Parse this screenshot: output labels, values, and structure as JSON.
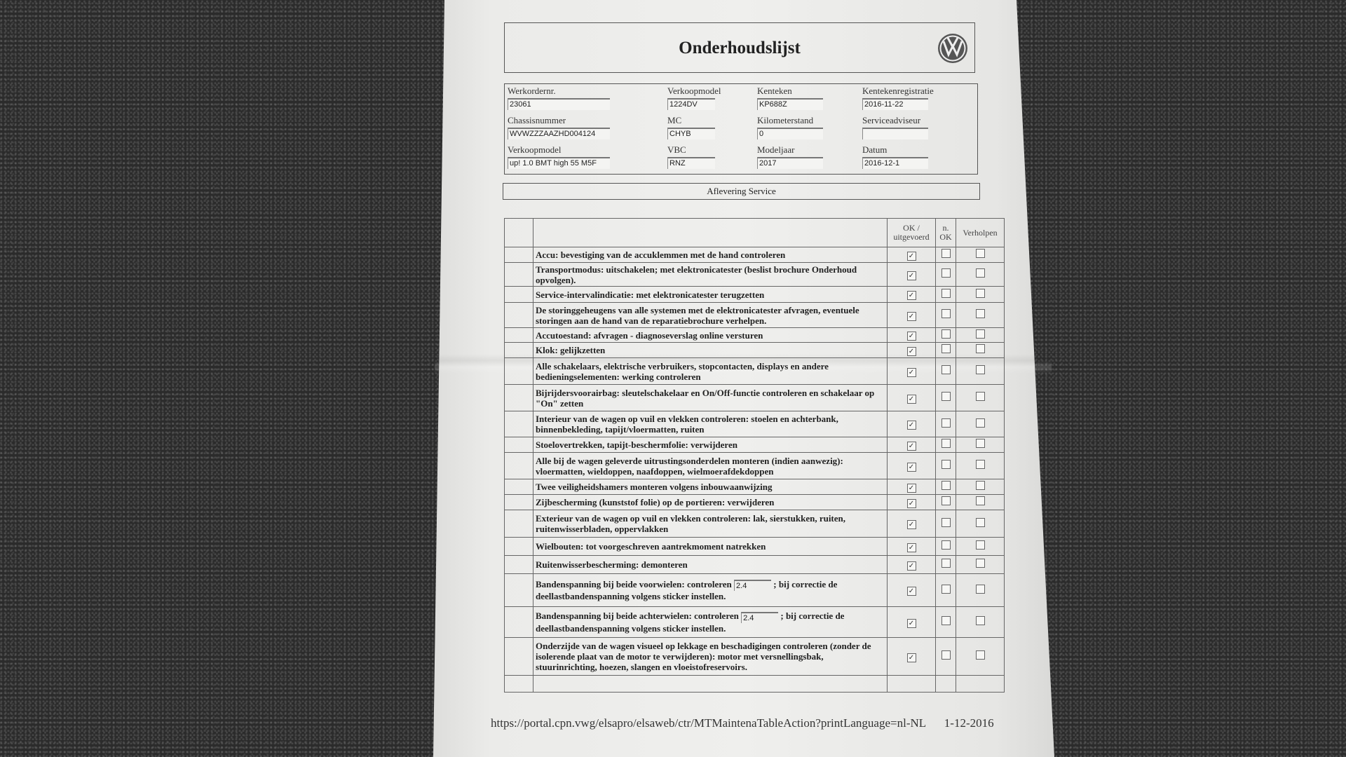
{
  "header": {
    "title": "Onderhoudslijst",
    "logo": "volkswagen-logo"
  },
  "info_fields": [
    {
      "label": "Werkordernr.",
      "value": "23061"
    },
    {
      "label": "Verkoopmodel",
      "value": "1224DV"
    },
    {
      "label": "Kenteken",
      "value": "KP688Z"
    },
    {
      "label": "Kentekenregistratie",
      "value": "2016-11-22"
    },
    {
      "label": "Chassisnummer",
      "value": "WVWZZZAAZHD004124"
    },
    {
      "label": "MC",
      "value": "CHYB"
    },
    {
      "label": "Kilometerstand",
      "value": "0"
    },
    {
      "label": "Serviceadviseur",
      "value": ""
    },
    {
      "label": "Verkoopmodel",
      "value": "up! 1.0 BMT high 55 M5F"
    },
    {
      "label": "VBC",
      "value": "RNZ"
    },
    {
      "label": "Modeljaar",
      "value": "2017"
    },
    {
      "label": "Datum",
      "value": "2016-12-1"
    }
  ],
  "section_title": "Aflevering Service",
  "table": {
    "columns": [
      "OK / uitgevoerd",
      "n. OK",
      "Verholpen"
    ],
    "rows": [
      {
        "text": "Accu: bevestiging van de accuklemmen met de hand controleren",
        "ok": true,
        "nok": false,
        "fixed": false
      },
      {
        "text": "Transportmodus: uitschakelen; met elektronicatester (beslist brochure Onderhoud opvolgen).",
        "ok": true,
        "nok": false,
        "fixed": false
      },
      {
        "text": "Service-intervalindicatie: met elektronicatester terugzetten",
        "ok": true,
        "nok": false,
        "fixed": false
      },
      {
        "text": "De storinggeheugens van alle systemen met de elektronicatester afvragen, eventuele storingen aan de hand van de reparatiebrochure verhelpen.",
        "ok": true,
        "nok": false,
        "fixed": false
      },
      {
        "text": "Accutoestand: afvragen - diagnoseverslag online versturen",
        "ok": true,
        "nok": false,
        "fixed": false
      },
      {
        "text": "Klok: gelijkzetten",
        "ok": true,
        "nok": false,
        "fixed": false
      },
      {
        "text": "Alle schakelaars, elektrische verbruikers, stopcontacten, displays en andere bedieningselementen: werking controleren",
        "ok": true,
        "nok": false,
        "fixed": false
      },
      {
        "text": "Bijrijdersvoorairbag: sleutelschakelaar en On/Off-functie controleren en schakelaar op \"On\" zetten",
        "ok": true,
        "nok": false,
        "fixed": false
      },
      {
        "text": "Interieur van de wagen op vuil en vlekken controleren: stoelen en achterbank, binnenbekleding, tapijt/vloermatten, ruiten",
        "ok": true,
        "nok": false,
        "fixed": false
      },
      {
        "text": "Stoelovertrekken, tapijt-beschermfolie: verwijderen",
        "ok": true,
        "nok": false,
        "fixed": false
      },
      {
        "text": "Alle bij de wagen geleverde uitrustingsonderdelen monteren (indien aanwezig): vloermatten, wieldoppen, naafdoppen, wielmoerafdekdoppen",
        "ok": true,
        "nok": false,
        "fixed": false
      },
      {
        "text": "Twee veiligheidshamers monteren volgens inbouwaanwijzing",
        "ok": true,
        "nok": false,
        "fixed": false
      },
      {
        "text": "Zijbescherming (kunststof folie) op de portieren: verwijderen",
        "ok": true,
        "nok": false,
        "fixed": false
      },
      {
        "text": "Exterieur van de wagen op vuil en vlekken controleren: lak, sierstukken, ruiten, ruitenwisserbladen, oppervlakken",
        "ok": true,
        "nok": false,
        "fixed": false
      },
      {
        "text": "Wielbouten: tot voorgeschreven aantrekmoment natrekken",
        "ok": true,
        "nok": false,
        "fixed": false
      },
      {
        "text": "Ruitenwisserbescherming: demonteren",
        "ok": true,
        "nok": false,
        "fixed": false
      },
      {
        "text": "Bandenspanning bij beide voorwielen: controleren",
        "input": "2.4",
        "text_after": "; bij correctie de deellastbandenspanning volgens sticker instellen.",
        "ok": true,
        "nok": false,
        "fixed": false
      },
      {
        "text": "Bandenspanning bij beide achterwielen: controleren",
        "input": "2.4",
        "text_after": "; bij correctie de deellastbandenspanning volgens sticker instellen.",
        "ok": true,
        "nok": false,
        "fixed": false
      },
      {
        "text": "Onderzijde van de wagen visueel op lekkage en beschadigingen controleren (zonder de isolerende plaat van de motor te verwijderen): motor met versnellingsbak, stuurinrichting, hoezen, slangen en vloeistofreservoirs.",
        "ok": true,
        "nok": false,
        "fixed": false
      }
    ]
  },
  "footer": {
    "url": "https://portal.cpn.vwg/elsapro/elsaweb/ctr/MTMaintenaTableAction?printLanguage=nl-NL",
    "date": "1-12-2016"
  }
}
